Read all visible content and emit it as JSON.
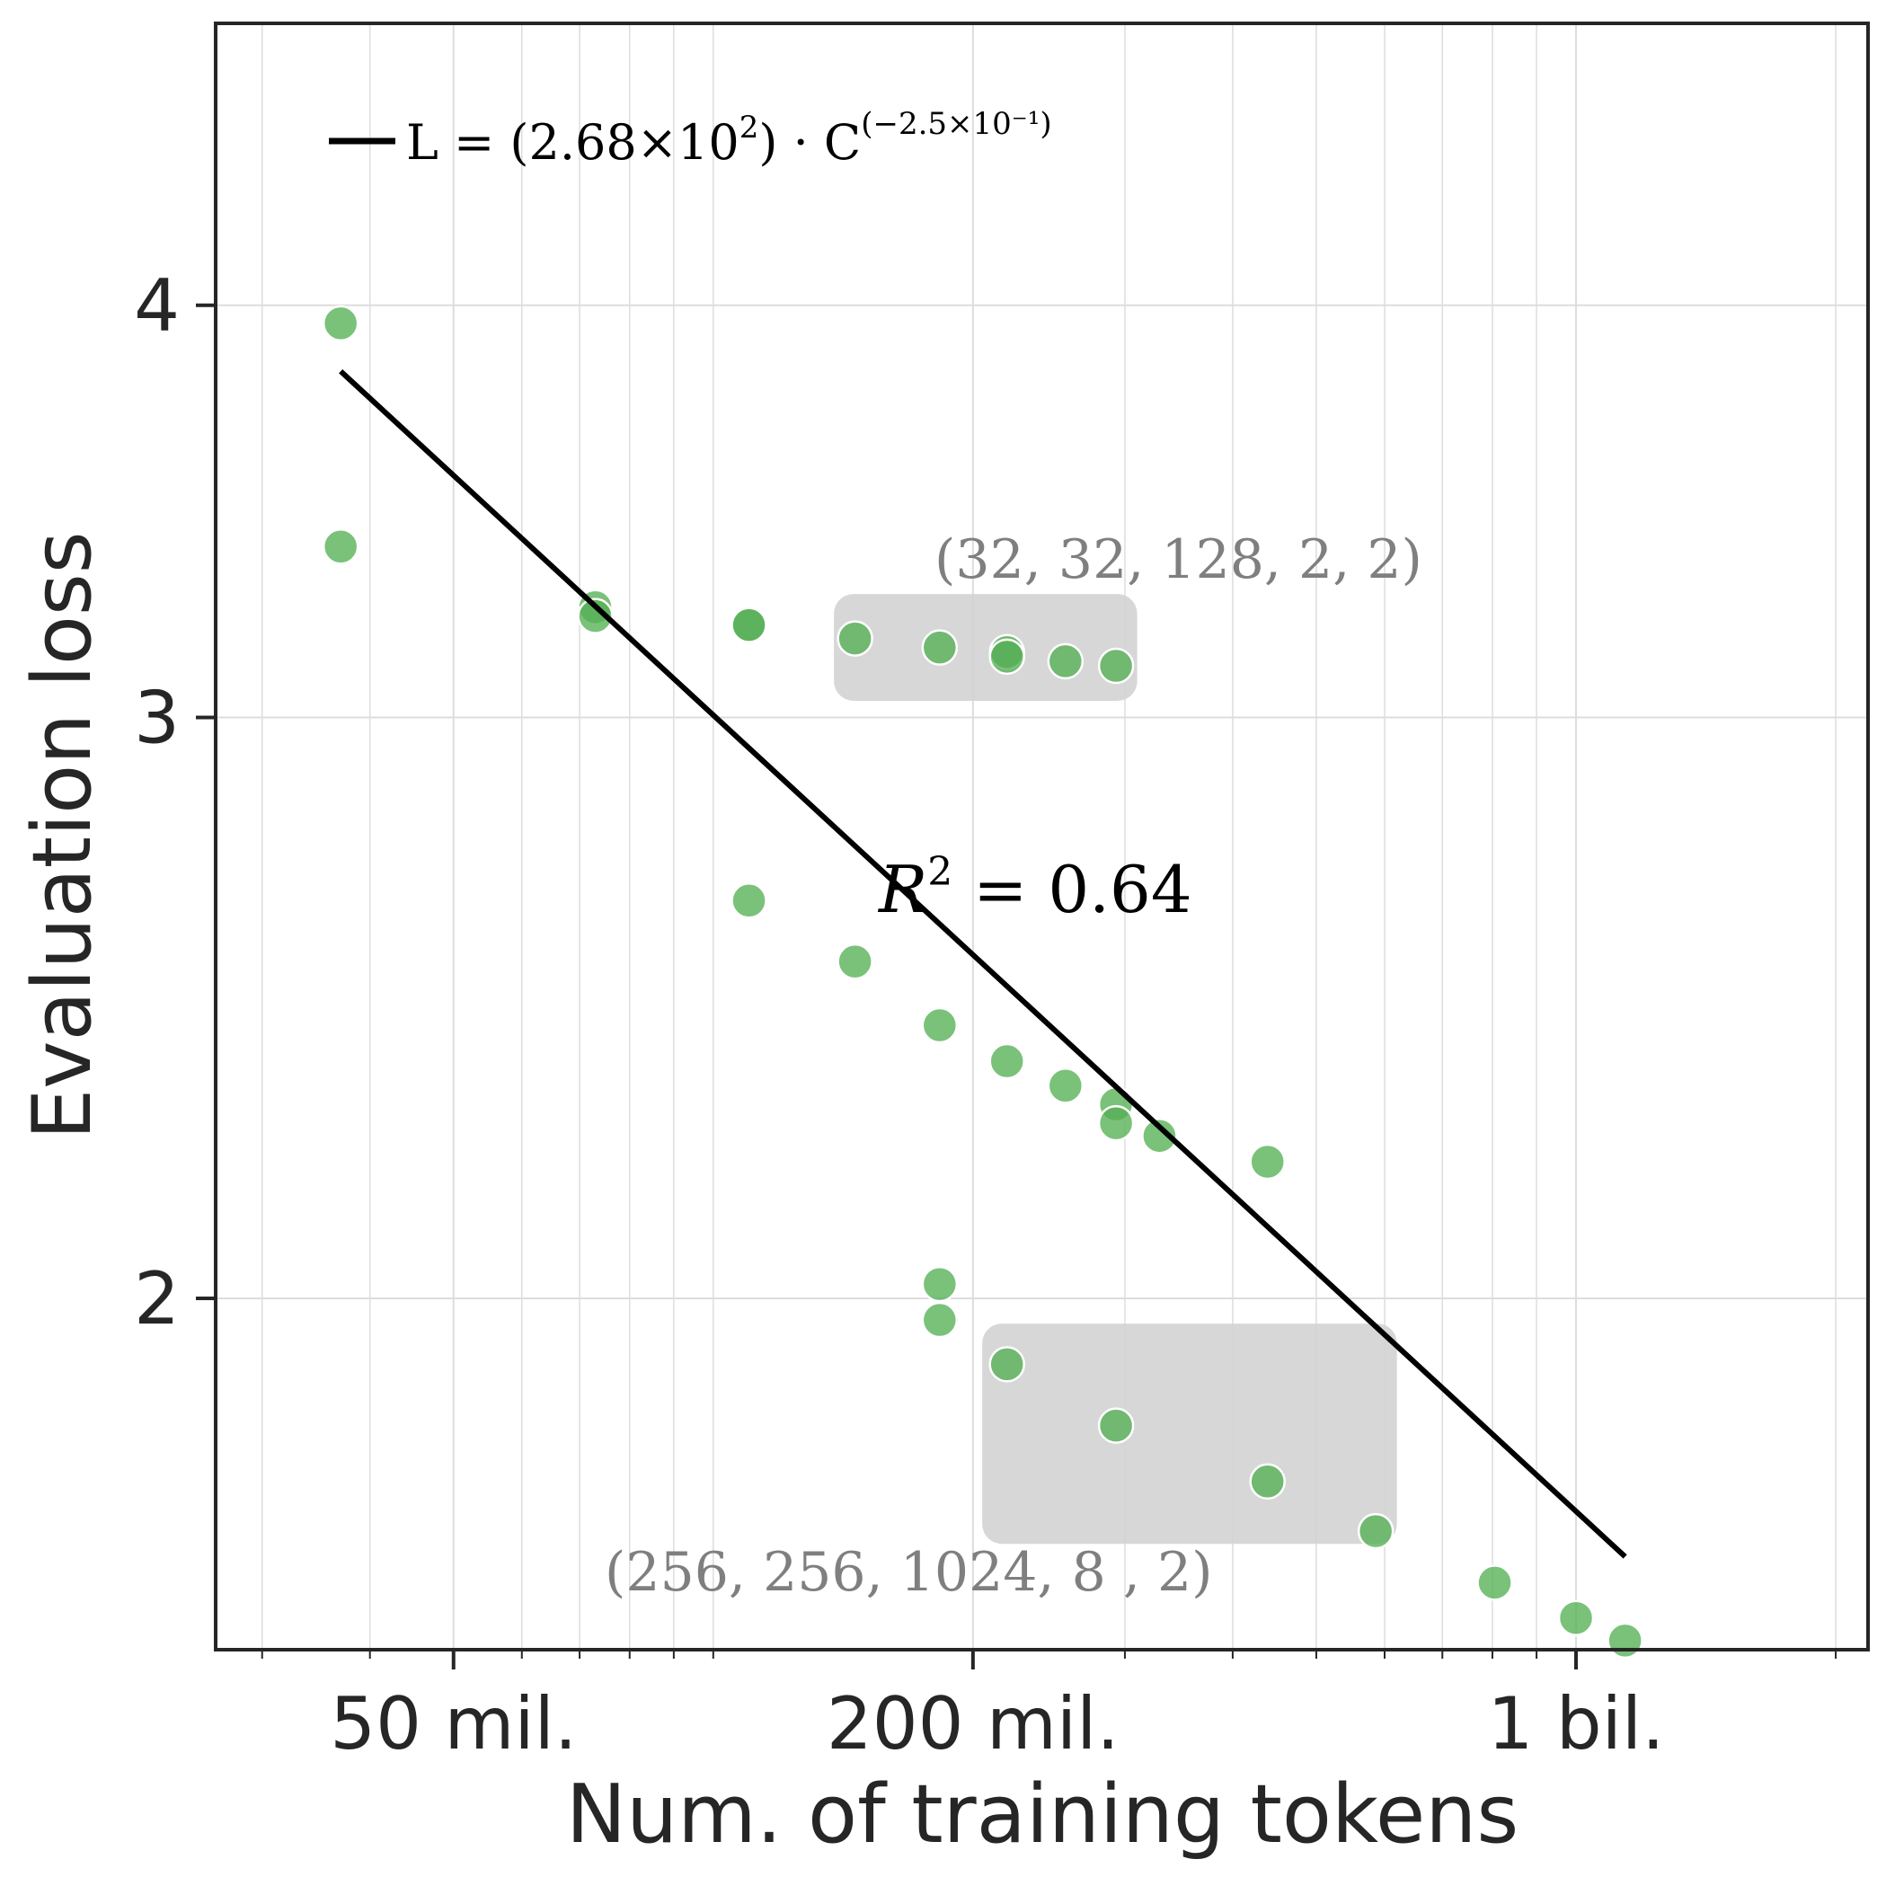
{
  "colors": {
    "point": "#55b055",
    "point_edge": "#ffffff",
    "fit_line": "#000000",
    "highlight": "#d3d3d3",
    "grid": "#dddddd",
    "annotation": "#7f7f7f"
  },
  "chart_data": {
    "type": "scatter",
    "title": "",
    "xlabel": "Num. of training tokens",
    "ylabel": "Evaluation loss",
    "xscale": "log",
    "yscale": "log",
    "xlim": [
      26500000,
      2180000000
    ],
    "ylim": [
      1.565,
      4.87
    ],
    "x_ticks": [
      {
        "value": 50000000,
        "label": "50 mil."
      },
      {
        "value": 200000000,
        "label": "200 mil."
      },
      {
        "value": 1000000000,
        "label": "1 bil."
      }
    ],
    "y_ticks": [
      {
        "value": 2,
        "label": "2"
      },
      {
        "value": 3,
        "label": "3"
      },
      {
        "value": 4,
        "label": "4"
      }
    ],
    "grid": true,
    "points": [
      {
        "x": 37000000,
        "y": 3.95
      },
      {
        "x": 37000000,
        "y": 3.38
      },
      {
        "x": 73000000,
        "y": 3.24
      },
      {
        "x": 73000000,
        "y": 3.22
      },
      {
        "x": 110000000,
        "y": 3.2
      },
      {
        "x": 110000000,
        "y": 3.2
      },
      {
        "x": 146000000,
        "y": 3.17
      },
      {
        "x": 183000000,
        "y": 3.15
      },
      {
        "x": 219000000,
        "y": 3.14
      },
      {
        "x": 219000000,
        "y": 3.13
      },
      {
        "x": 256000000,
        "y": 3.12
      },
      {
        "x": 293000000,
        "y": 3.11
      },
      {
        "x": 110000000,
        "y": 2.64
      },
      {
        "x": 146000000,
        "y": 2.53
      },
      {
        "x": 183000000,
        "y": 2.42
      },
      {
        "x": 219000000,
        "y": 2.36
      },
      {
        "x": 256000000,
        "y": 2.32
      },
      {
        "x": 293000000,
        "y": 2.29
      },
      {
        "x": 293000000,
        "y": 2.26
      },
      {
        "x": 329000000,
        "y": 2.24
      },
      {
        "x": 439000000,
        "y": 2.2
      },
      {
        "x": 183000000,
        "y": 2.02
      },
      {
        "x": 183000000,
        "y": 1.97
      },
      {
        "x": 219000000,
        "y": 1.91
      },
      {
        "x": 293000000,
        "y": 1.83
      },
      {
        "x": 439000000,
        "y": 1.76
      },
      {
        "x": 586000000,
        "y": 1.7
      },
      {
        "x": 805000000,
        "y": 1.64
      },
      {
        "x": 1000000000,
        "y": 1.6
      },
      {
        "x": 1140000000,
        "y": 1.575
      }
    ],
    "fit": {
      "label": "L = (2.68×10²) · C^(−2.5×10⁻¹)",
      "label_main": "L = (2.68×10",
      "label_exp1": "2",
      "label_mid": ") · C",
      "label_exp2": "(−2.5×10⁻¹)",
      "r2_label": "R",
      "r2_exp": "2",
      "r2_value": " = 0.64",
      "x_range": [
        37000000,
        1140000000
      ],
      "y_range": [
        3.82,
        1.67
      ]
    },
    "highlight_groups": [
      {
        "label": "(32, 32, 128, 2, 2)",
        "x_range": [
          138000000,
          310000000
        ],
        "y_range": [
          3.035,
          3.27
        ],
        "label_position": "above"
      },
      {
        "label": "(256, 256, 1024, 8 , 2)",
        "x_range": [
          205000000,
          620000000
        ],
        "y_range": [
          1.685,
          1.965
        ],
        "label_position": "below-left"
      }
    ]
  }
}
